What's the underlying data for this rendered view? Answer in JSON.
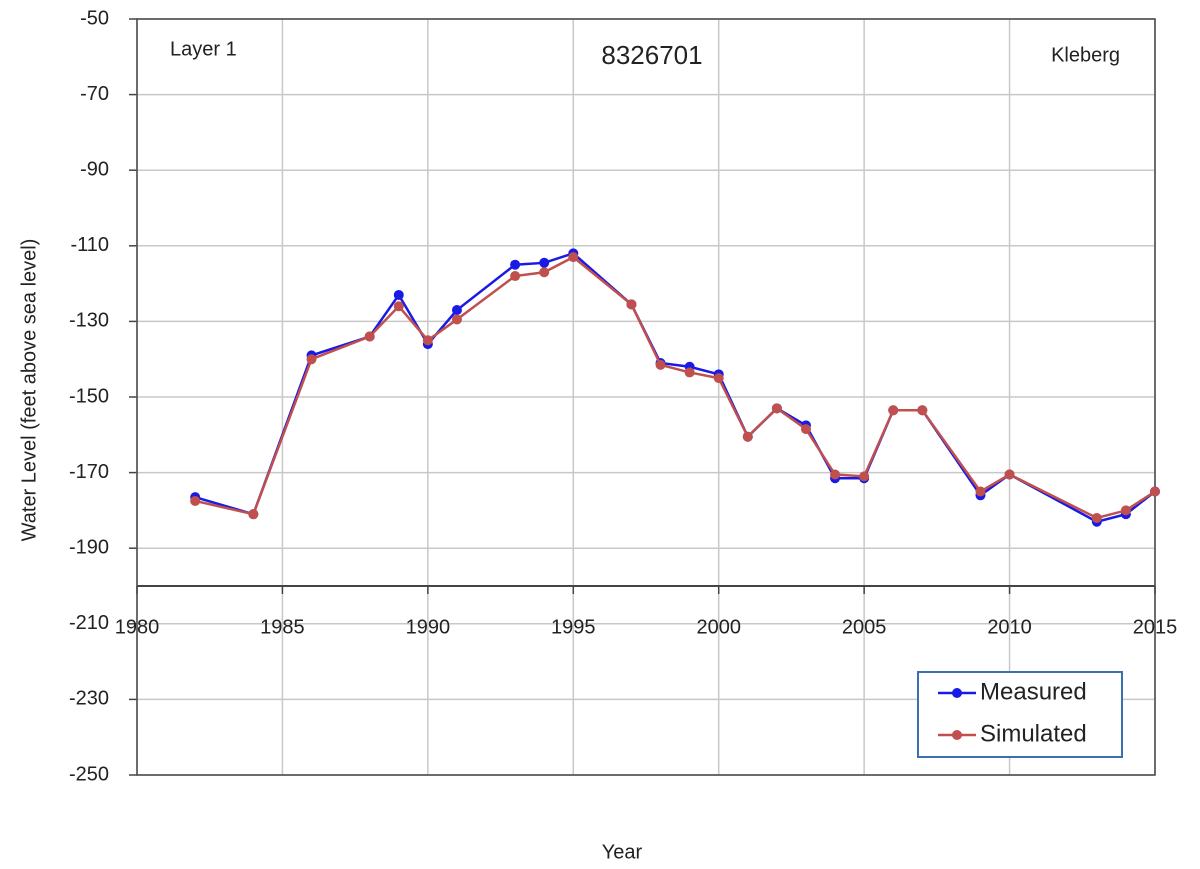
{
  "chart_data": {
    "type": "line",
    "title": "8326701",
    "annotations": [
      "Layer 1",
      "Kleberg"
    ],
    "x_label": "Year",
    "y_label": "Water Level (feet above sea level)",
    "xlim": [
      1980,
      2015
    ],
    "xticks": [
      1980,
      1985,
      1990,
      1995,
      2000,
      2005,
      2010,
      2015
    ],
    "ylim": [
      -250,
      -50
    ],
    "yticks": [
      -50,
      -70,
      -90,
      -110,
      -130,
      -150,
      -170,
      -190,
      -210,
      -230,
      -250
    ],
    "x_axis_crosses": -200,
    "grid": true,
    "legend": "lower right",
    "x": [
      1982,
      1984,
      1986,
      1988,
      1989,
      1990,
      1991,
      1993,
      1994,
      1995,
      1997,
      1998,
      1999,
      2000,
      2001,
      2002,
      2003,
      2004,
      2005,
      2006,
      2007,
      2009,
      2010,
      2013,
      2014,
      2015
    ],
    "series": [
      {
        "name": "Measured",
        "color": "#1a1ae6",
        "values": [
          -176.5,
          -181,
          -139,
          -134,
          -123,
          -136,
          -127,
          -115,
          -114.5,
          -112,
          -125.5,
          -141,
          -142,
          -144,
          -160.5,
          -153,
          -157.5,
          -171.5,
          -171.5,
          -153.5,
          -153.5,
          -176,
          -170.5,
          -183,
          -181,
          -175
        ]
      },
      {
        "name": "Simulated",
        "color": "#c0504d",
        "values": [
          -177.5,
          -181,
          -140,
          -134,
          -126,
          -135,
          -129.5,
          -118,
          -117,
          -113,
          -125.5,
          -141.5,
          -143.5,
          -145,
          -160.5,
          -153,
          -158.5,
          -170.5,
          -171,
          -153.5,
          -153.5,
          -175,
          -170.5,
          -182,
          -180,
          -175
        ]
      }
    ]
  }
}
